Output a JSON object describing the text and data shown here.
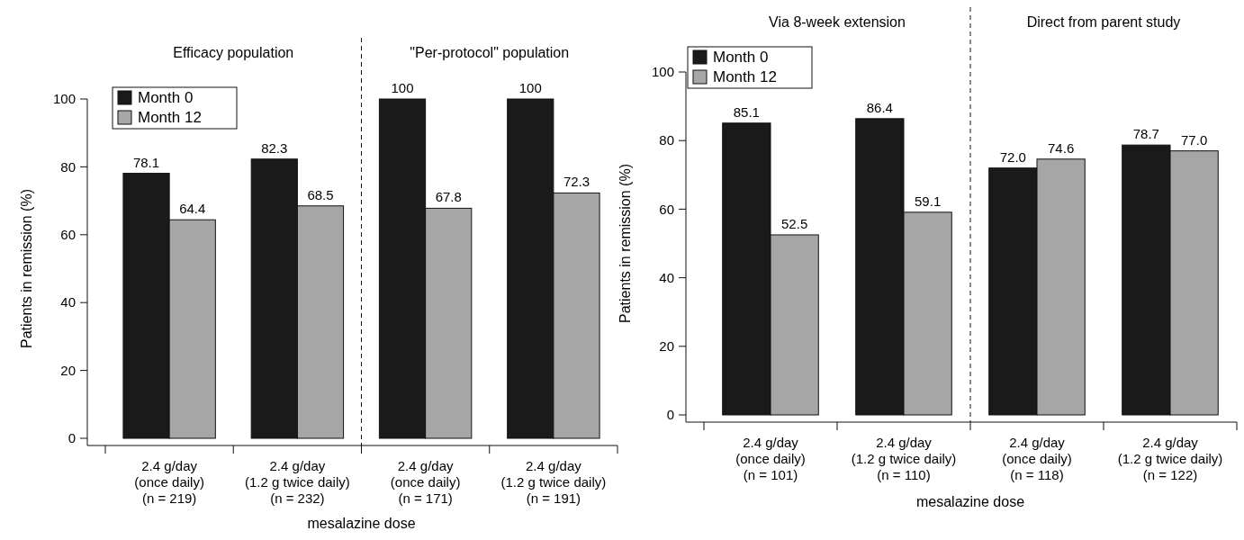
{
  "chart_data": [
    {
      "type": "bar",
      "ylabel": "Patients in remission (%)",
      "xlabel": "mesalazine dose",
      "categories": [
        "2.4 g/day\n(once daily)\n(n = 219)",
        "2.4 g/day\n(1.2 g twice daily)\n(n = 232)",
        "2.4 g/day\n(once daily)\n(n = 171)",
        "2.4 g/day\n(1.2 g twice daily)\n(n = 191)"
      ],
      "series": [
        {
          "name": "Month 0",
          "color": "#1a1a1a",
          "values": [
            78.1,
            82.3,
            100,
            100
          ],
          "value_labels": [
            "78.1",
            "82.3",
            "100",
            "100"
          ]
        },
        {
          "name": "Month 12",
          "color": "#a6a6a6",
          "values": [
            64.4,
            68.5,
            67.8,
            72.3
          ],
          "value_labels": [
            "64.4",
            "68.5",
            "67.8",
            "72.3"
          ]
        }
      ],
      "ylim": [
        0,
        100
      ],
      "yticks": [
        0,
        20,
        40,
        60,
        80,
        100
      ],
      "legend": "top left",
      "annotations": [
        "Efficacy population",
        "\"Per-protocol\" population"
      ]
    },
    {
      "type": "bar",
      "ylabel": "Patients in remission (%)",
      "xlabel": "mesalazine dose",
      "categories": [
        "2.4 g/day\n(once daily)\n(n = 101)",
        "2.4 g/day\n(1.2 g twice daily)\n(n = 110)",
        "2.4 g/day\n(once daily)\n(n = 118)",
        "2.4 g/day\n(1.2 g twice daily)\n(n = 122)"
      ],
      "series": [
        {
          "name": "Month 0",
          "color": "#1a1a1a",
          "values": [
            85.1,
            86.4,
            72.0,
            78.7
          ],
          "value_labels": [
            "85.1",
            "86.4",
            "72.0",
            "78.7"
          ]
        },
        {
          "name": "Month 12",
          "color": "#a6a6a6",
          "values": [
            52.5,
            59.1,
            74.6,
            77.0
          ],
          "value_labels": [
            "52.5",
            "59.1",
            "74.6",
            "77.0"
          ]
        }
      ],
      "ylim": [
        0,
        100
      ],
      "yticks": [
        0,
        20,
        40,
        60,
        80,
        100
      ],
      "legend": "top left",
      "annotations": [
        "Via 8-week extension",
        "Direct from parent study"
      ]
    }
  ]
}
